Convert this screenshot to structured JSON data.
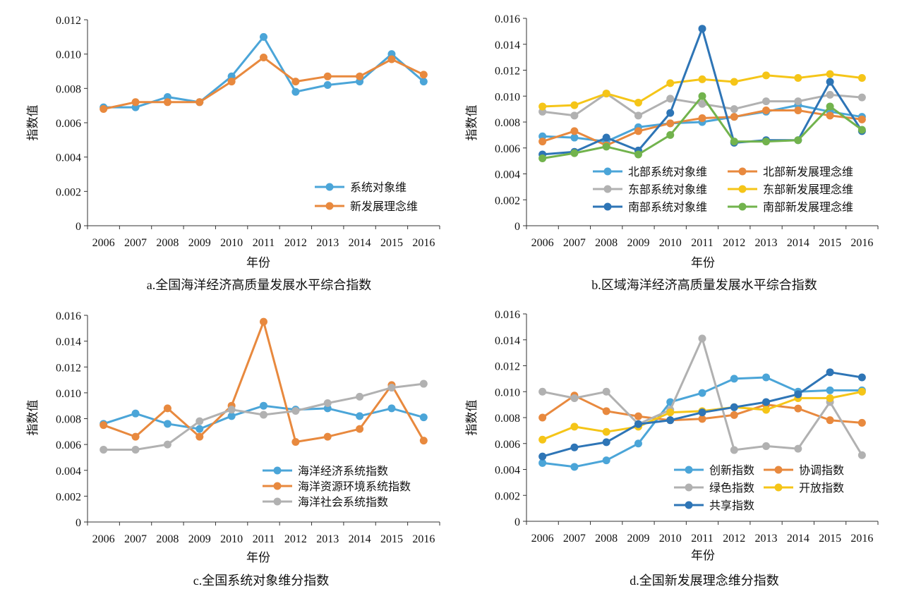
{
  "colors": {
    "blue_light": "#4ba5d8",
    "orange": "#e8893e",
    "gray": "#b1b1b1",
    "yellow": "#f5c518",
    "blue_dark": "#2e75b6",
    "green": "#72b34d"
  },
  "chart_data": [
    {
      "type": "line",
      "caption": "a.全国海洋经济高质量发展水平综合指数",
      "xlabel": "年份",
      "ylabel": "指数值",
      "ylim": [
        0,
        0.012
      ],
      "yticks": [
        "0",
        "0.002",
        "0.004",
        "0.006",
        "0.008",
        "0.010",
        "0.012"
      ],
      "categories": [
        "2006",
        "2007",
        "2008",
        "2009",
        "2010",
        "2011",
        "2012",
        "2013",
        "2014",
        "2015",
        "2016"
      ],
      "legend_position": "bottom-right",
      "legend_cols": 1,
      "grid": false,
      "series": [
        {
          "name": "系统对象维",
          "color": "#4ba5d8",
          "values": [
            0.0069,
            0.0069,
            0.0075,
            0.0072,
            0.0087,
            0.011,
            0.0078,
            0.0082,
            0.0084,
            0.01,
            0.0084
          ]
        },
        {
          "name": "新发展理念维",
          "color": "#e8893e",
          "values": [
            0.0068,
            0.0072,
            0.0072,
            0.0072,
            0.0084,
            0.0098,
            0.0084,
            0.0087,
            0.0087,
            0.0097,
            0.0088
          ]
        }
      ]
    },
    {
      "type": "line",
      "caption": "b.区域海洋经济高质量发展水平综合指数",
      "xlabel": "年份",
      "ylabel": "指数值",
      "ylim": [
        0,
        0.016
      ],
      "yticks": [
        "0",
        "0.002",
        "0.004",
        "0.006",
        "0.008",
        "0.010",
        "0.012",
        "0.014",
        "0.016"
      ],
      "categories": [
        "2006",
        "2007",
        "2008",
        "2009",
        "2010",
        "2011",
        "2012",
        "2013",
        "2014",
        "2015",
        "2016"
      ],
      "legend_position": "lower-center",
      "legend_cols": 2,
      "grid": false,
      "series": [
        {
          "name": "北部系统对象维",
          "color": "#4ba5d8",
          "values": [
            0.0069,
            0.0068,
            0.0065,
            0.0076,
            0.0079,
            0.008,
            0.0084,
            0.0088,
            0.0093,
            0.0088,
            0.0084
          ]
        },
        {
          "name": "北部新发展理念维",
          "color": "#e8893e",
          "values": [
            0.0065,
            0.0073,
            0.0062,
            0.0073,
            0.0079,
            0.0083,
            0.0084,
            0.0089,
            0.0089,
            0.0085,
            0.0082
          ]
        },
        {
          "name": "东部系统对象维",
          "color": "#b1b1b1",
          "values": [
            0.0088,
            0.0085,
            0.0102,
            0.0085,
            0.0098,
            0.0094,
            0.009,
            0.0096,
            0.0096,
            0.0101,
            0.0099
          ]
        },
        {
          "name": "东部新发展理念维",
          "color": "#f5c518",
          "values": [
            0.0092,
            0.0093,
            0.0102,
            0.0095,
            0.011,
            0.0113,
            0.0111,
            0.0116,
            0.0114,
            0.0117,
            0.0114
          ]
        },
        {
          "name": "南部系统对象维",
          "color": "#2e75b6",
          "values": [
            0.0055,
            0.0057,
            0.0068,
            0.0058,
            0.0087,
            0.0152,
            0.0064,
            0.0066,
            0.0066,
            0.0111,
            0.0073
          ]
        },
        {
          "name": "南部新发展理念维",
          "color": "#72b34d",
          "values": [
            0.0052,
            0.0056,
            0.0061,
            0.0055,
            0.007,
            0.01,
            0.0065,
            0.0065,
            0.0066,
            0.0092,
            0.0074
          ]
        }
      ]
    },
    {
      "type": "line",
      "caption": "c.全国系统对象维分指数",
      "xlabel": "年份",
      "ylabel": "指数值",
      "ylim": [
        0,
        0.016
      ],
      "yticks": [
        "0",
        "0.002",
        "0.004",
        "0.006",
        "0.008",
        "0.010",
        "0.012",
        "0.014",
        "0.016"
      ],
      "categories": [
        "2006",
        "2007",
        "2008",
        "2009",
        "2010",
        "2011",
        "2012",
        "2013",
        "2014",
        "2015",
        "2016"
      ],
      "legend_position": "bottom-right",
      "legend_cols": 1,
      "grid": false,
      "series": [
        {
          "name": "海洋经济系统指数",
          "color": "#4ba5d8",
          "values": [
            0.0076,
            0.0084,
            0.0076,
            0.0072,
            0.0082,
            0.009,
            0.0087,
            0.0088,
            0.0082,
            0.0088,
            0.0081
          ]
        },
        {
          "name": "海洋资源环境系统指数",
          "color": "#e8893e",
          "values": [
            0.0075,
            0.0066,
            0.0088,
            0.0066,
            0.009,
            0.0155,
            0.0062,
            0.0066,
            0.0072,
            0.0106,
            0.0063
          ]
        },
        {
          "name": "海洋社会系统指数",
          "color": "#b1b1b1",
          "values": [
            0.0056,
            0.0056,
            0.006,
            0.0078,
            0.0087,
            0.0083,
            0.0086,
            0.0092,
            0.0097,
            0.0104,
            0.0107
          ]
        }
      ]
    },
    {
      "type": "line",
      "caption": "d.全国新发展理念维分指数",
      "xlabel": "年份",
      "ylabel": "指数值",
      "ylim": [
        0,
        0.016
      ],
      "yticks": [
        "0",
        "0.002",
        "0.004",
        "0.006",
        "0.008",
        "0.010",
        "0.012",
        "0.014",
        "0.016"
      ],
      "categories": [
        "2006",
        "2007",
        "2008",
        "2009",
        "2010",
        "2011",
        "2012",
        "2013",
        "2014",
        "2015",
        "2016"
      ],
      "legend_position": "bottom-right",
      "legend_cols": 2,
      "grid": false,
      "series": [
        {
          "name": "创新指数",
          "color": "#4ba5d8",
          "values": [
            0.0045,
            0.0042,
            0.0047,
            0.006,
            0.0092,
            0.0099,
            0.011,
            0.0111,
            0.01,
            0.0101,
            0.0101
          ]
        },
        {
          "name": "协调指数",
          "color": "#e8893e",
          "values": [
            0.008,
            0.0097,
            0.0085,
            0.0081,
            0.0078,
            0.0079,
            0.0082,
            0.009,
            0.0087,
            0.0078,
            0.0076
          ]
        },
        {
          "name": "绿色指数",
          "color": "#b1b1b1",
          "values": [
            0.01,
            0.0095,
            0.01,
            0.0075,
            0.0086,
            0.0141,
            0.0055,
            0.0058,
            0.0056,
            0.0092,
            0.0051
          ]
        },
        {
          "name": "开放指数",
          "color": "#f5c518",
          "values": [
            0.0063,
            0.0073,
            0.0069,
            0.0073,
            0.0084,
            0.0085,
            0.0088,
            0.0086,
            0.0095,
            0.0095,
            0.01
          ]
        },
        {
          "name": "共享指数",
          "color": "#2e75b6",
          "values": [
            0.005,
            0.0057,
            0.0061,
            0.0075,
            0.0078,
            0.0084,
            0.0088,
            0.0092,
            0.0098,
            0.0115,
            0.0111
          ]
        }
      ]
    }
  ]
}
